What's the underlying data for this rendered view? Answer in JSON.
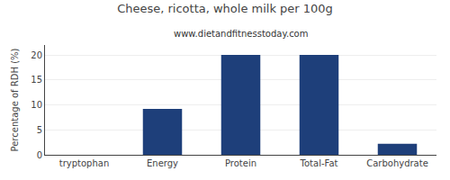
{
  "chart_data": {
    "type": "bar",
    "title": "Cheese, ricotta, whole milk per 100g",
    "subtitle": "www.dietandfitnesstoday.com",
    "categories": [
      "tryptophan",
      "Energy",
      "Protein",
      "Total-Fat",
      "Carbohydrate"
    ],
    "values": [
      0,
      9.2,
      20,
      20,
      2.2
    ],
    "color": "#1e3f7a",
    "ylabel": "Percentage of RDH (%)",
    "ylim": [
      0,
      22
    ],
    "yticks": [
      0,
      5,
      10,
      15,
      20
    ],
    "grid": true
  }
}
